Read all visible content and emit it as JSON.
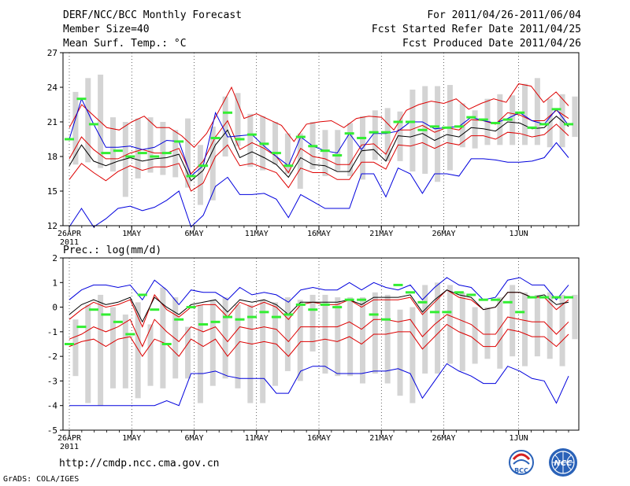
{
  "header": {
    "title": "DERF/NCC/BCC Monthly Forecast",
    "member_size": "Member Size=40",
    "variable": "Mean Surf. Temp.: °C",
    "period": "For 2011/04/26-2011/06/04",
    "started": "Fcst Started Refer Date 2011/04/25",
    "produced": "Fcst Produced Date 2011/04/26"
  },
  "footer": {
    "url": "http://cmdp.ncc.cma.gov.cn",
    "grads": "GrADS: COLA/IGES",
    "logo_left": "BCC",
    "logo_right": "NCC"
  },
  "colors": {
    "box": "#d4d4d4",
    "envelope": "#0000dd",
    "percentile": "#dd0000",
    "ensemble_mean": "#000000",
    "member_mark": "#33ee33",
    "grid": "#000000"
  },
  "chart_data": [
    {
      "type": "line",
      "title": "Mean Surf. Temp.: °C",
      "ylim": [
        12,
        27
      ],
      "yticks": [
        12,
        15,
        18,
        21,
        24,
        27
      ],
      "ytick_labels": [
        "12",
        "15",
        "18",
        "21",
        "24",
        "27"
      ],
      "x_days": 40,
      "xtick_days": [
        0,
        5,
        10,
        15,
        20,
        25,
        30,
        36
      ],
      "xtick_labels": [
        "26APR",
        "1MAY",
        "6MAY",
        "11MAY",
        "16MAY",
        "21MAY",
        "26MAY",
        "1JUN"
      ],
      "xtick_sublabel": "2011",
      "series": [
        {
          "name": "max",
          "values": [
            11.9,
            13.5,
            11.9,
            12.6,
            13.5,
            13.7,
            13.3,
            13.6,
            14.2,
            15.0,
            11.9,
            12.9,
            15.4,
            16.2,
            14.7,
            14.7,
            14.8,
            14.3,
            12.7,
            14.7,
            14.1,
            13.5,
            13.5,
            13.5,
            16.5,
            16.5,
            14.5,
            17.0,
            16.5,
            14.8,
            16.5,
            16.5,
            16.3,
            17.8,
            17.8,
            17.7,
            17.5,
            17.5,
            17.6,
            17.9,
            19.2,
            17.9
          ]
        },
        {
          "name": "p90",
          "values": [
            20.5,
            22.5,
            21.5,
            20.5,
            20.3,
            21.0,
            21.5,
            20.5,
            20.5,
            19.8,
            18.8,
            20.0,
            22.0,
            24.0,
            21.3,
            21.7,
            21.2,
            20.7,
            19.3,
            20.8,
            21.0,
            21.1,
            20.5,
            21.3,
            21.5,
            21.4,
            20.3,
            22.0,
            22.5,
            22.8,
            22.6,
            23.0,
            22.1,
            22.6,
            23.0,
            22.7,
            24.3,
            24.1,
            22.7,
            23.6,
            22.4
          ]
        },
        {
          "name": "p75",
          "values": [
            17.8,
            19.7,
            18.6,
            17.8,
            17.8,
            18.3,
            18.6,
            18.3,
            18.3,
            18.7,
            16.5,
            17.6,
            19.7,
            21.1,
            18.6,
            19.2,
            18.7,
            18.0,
            16.6,
            18.7,
            18.0,
            17.8,
            17.3,
            17.3,
            19.0,
            19.1,
            18.2,
            20.3,
            20.3,
            20.7,
            20.1,
            20.5,
            20.3,
            21.2,
            21.1,
            20.8,
            21.8,
            21.6,
            21.1,
            21.1,
            22.0,
            21.3
          ]
        },
        {
          "name": "mean",
          "values": [
            17.2,
            19.0,
            17.6,
            17.2,
            17.6,
            17.9,
            17.6,
            17.8,
            17.9,
            18.2,
            15.9,
            16.8,
            19.0,
            20.3,
            17.9,
            18.4,
            17.9,
            17.3,
            16.2,
            17.9,
            17.3,
            17.2,
            16.7,
            16.7,
            18.5,
            18.6,
            17.6,
            19.8,
            19.7,
            20.0,
            19.4,
            19.9,
            19.7,
            20.5,
            20.4,
            20.2,
            21.0,
            20.9,
            20.4,
            20.5,
            21.5,
            20.6
          ]
        },
        {
          "name": "p25",
          "values": [
            16.0,
            17.4,
            16.6,
            15.9,
            16.7,
            17.2,
            16.8,
            17.1,
            17.1,
            17.4,
            15.0,
            15.7,
            18.0,
            19.0,
            17.2,
            17.4,
            17.0,
            16.6,
            15.3,
            17.0,
            16.6,
            16.6,
            16.0,
            16.0,
            17.5,
            17.5,
            16.9,
            19.0,
            18.9,
            19.2,
            18.7,
            19.2,
            19.0,
            19.8,
            19.8,
            19.5,
            20.1,
            20.0,
            19.7,
            19.9,
            20.8,
            19.8
          ]
        },
        {
          "name": "min_top",
          "values": [
            19.5,
            23.0,
            20.8,
            18.8,
            18.8,
            18.9,
            18.6,
            18.8,
            19.4,
            19.3,
            16.3,
            17.2,
            21.8,
            19.7,
            19.8,
            19.9,
            18.9,
            18.0,
            17.2,
            19.7,
            18.9,
            18.5,
            18.3,
            20.0,
            18.6,
            20.0,
            20.0,
            20.2,
            21.0,
            21.0,
            20.4,
            20.5,
            20.6,
            21.4,
            21.1,
            20.9,
            21.3,
            21.8,
            21.1,
            20.8,
            22.1,
            20.7
          ]
        }
      ],
      "box_high": [
        23.6,
        24.8,
        25.1,
        21.4,
        21.0,
        21.3,
        21.4,
        21.0,
        20.3,
        21.3,
        19.0,
        20.6,
        23.2,
        23.5,
        21.7,
        21.5,
        21.0,
        20.0,
        20.0,
        21.0,
        20.3,
        20.3,
        20.9,
        21.5,
        22.0,
        22.2,
        21.9,
        23.8,
        24.1,
        24.1,
        24.2,
        22.6,
        22.0,
        23.0,
        23.4,
        23.3,
        24.3,
        24.8,
        23.0,
        23.4,
        23.2
      ],
      "box_low": [
        17.3,
        17.5,
        17.0,
        16.7,
        14.5,
        16.1,
        16.6,
        16.4,
        16.2,
        15.3,
        13.8,
        14.2,
        18.0,
        18.9,
        17.1,
        16.8,
        17.3,
        16.5,
        15.2,
        16.9,
        16.3,
        16.8,
        16.3,
        16.0,
        17.7,
        17.6,
        17.6,
        16.7,
        16.5,
        15.8,
        16.8,
        18.8,
        18.7,
        19.0,
        19.0,
        19.0,
        19.0,
        19.0,
        18.8,
        18.8,
        19.7
      ],
      "member_marks": [
        19.5,
        23.0,
        20.8,
        18.3,
        18.5,
        18.0,
        18.3,
        18.0,
        18.3,
        19.3,
        16.3,
        17.2,
        19.6,
        21.8,
        19.5,
        19.9,
        19.1,
        18.3,
        17.2,
        19.7,
        18.9,
        18.5,
        18.1,
        20.0,
        19.6,
        20.1,
        20.1,
        21.0,
        21.0,
        20.3,
        20.6,
        20.5,
        20.6,
        21.4,
        21.2,
        20.9,
        21.2,
        21.8,
        20.5,
        20.8,
        22.1,
        20.8
      ]
    },
    {
      "type": "line",
      "title": "Prec.: log(mm/d)",
      "ylim": [
        -5,
        2
      ],
      "yticks": [
        -5,
        -4,
        -3,
        -2,
        -1,
        0,
        1,
        2
      ],
      "ytick_labels": [
        "-5",
        "-4",
        "-3",
        "-2",
        "-1",
        "0",
        "1",
        "2"
      ],
      "x_days": 40,
      "xtick_days": [
        0,
        5,
        10,
        15,
        20,
        25,
        30,
        36
      ],
      "xtick_labels": [
        "26APR",
        "1MAY",
        "6MAY",
        "11MAY",
        "16MAY",
        "21MAY",
        "26MAY",
        "1JUN"
      ],
      "xtick_sublabel": "2011",
      "series": [
        {
          "name": "max",
          "values": [
            0.3,
            0.7,
            0.9,
            0.9,
            0.8,
            0.9,
            0.3,
            1.1,
            0.7,
            0.1,
            0.7,
            0.6,
            0.6,
            0.3,
            0.8,
            0.5,
            0.6,
            0.5,
            0.2,
            0.7,
            0.8,
            0.7,
            0.7,
            1.0,
            0.7,
            1.0,
            0.8,
            0.7,
            0.9,
            0.3,
            0.8,
            1.2,
            0.9,
            0.8,
            0.3,
            0.4,
            1.1,
            1.2,
            0.9,
            0.9,
            0.3,
            0.9
          ]
        },
        {
          "name": "p90",
          "values": [
            -0.5,
            -0.1,
            0.2,
            0.0,
            0.1,
            0.3,
            -0.8,
            0.5,
            -0.1,
            -0.4,
            0.0,
            0.1,
            0.1,
            -0.4,
            0.2,
            0.0,
            0.2,
            0.0,
            -0.5,
            0.1,
            0.2,
            0.1,
            0.1,
            0.3,
            0.0,
            0.3,
            0.3,
            0.3,
            0.4,
            -0.3,
            0.2,
            0.7,
            0.4,
            0.3,
            -0.1,
            0.0,
            0.6,
            0.6,
            0.4,
            0.4,
            -0.1,
            0.3
          ]
        },
        {
          "name": "mean",
          "values": [
            -0.3,
            0.1,
            0.3,
            0.1,
            0.2,
            0.4,
            -0.6,
            0.4,
            0.0,
            -0.3,
            0.1,
            0.2,
            0.3,
            -0.2,
            0.3,
            0.2,
            0.3,
            0.1,
            -0.3,
            0.2,
            0.2,
            0.2,
            0.2,
            0.3,
            0.1,
            0.4,
            0.4,
            0.4,
            0.5,
            -0.2,
            0.3,
            0.7,
            0.5,
            0.4,
            -0.1,
            0.0,
            0.6,
            0.6,
            0.4,
            0.5,
            0.1,
            0.2
          ]
        },
        {
          "name": "p25",
          "values": [
            -1.3,
            -1.1,
            -0.8,
            -1.0,
            -0.8,
            -0.5,
            -1.6,
            -0.5,
            -1.0,
            -1.4,
            -0.8,
            -1.0,
            -0.8,
            -1.4,
            -0.8,
            -0.9,
            -0.8,
            -0.9,
            -1.4,
            -0.8,
            -0.8,
            -0.8,
            -0.8,
            -0.6,
            -0.9,
            -0.5,
            -0.5,
            -0.6,
            -0.5,
            -1.2,
            -0.7,
            -0.3,
            -0.5,
            -0.7,
            -1.1,
            -1.1,
            -0.4,
            -0.5,
            -0.6,
            -0.6,
            -1.1,
            -0.6
          ]
        },
        {
          "name": "p10",
          "values": [
            -1.6,
            -1.4,
            -1.3,
            -1.6,
            -1.3,
            -1.2,
            -2.0,
            -1.3,
            -1.5,
            -2.0,
            -1.3,
            -1.6,
            -1.3,
            -2.0,
            -1.4,
            -1.5,
            -1.4,
            -1.5,
            -2.0,
            -1.4,
            -1.4,
            -1.3,
            -1.4,
            -1.2,
            -1.5,
            -1.1,
            -1.1,
            -1.0,
            -1.0,
            -1.7,
            -1.2,
            -0.7,
            -1.0,
            -1.2,
            -1.6,
            -1.6,
            -0.9,
            -1.0,
            -1.2,
            -1.2,
            -1.6,
            -1.1
          ]
        },
        {
          "name": "min",
          "values": [
            -4.0,
            -4.0,
            -4.0,
            -4.0,
            -4.0,
            -4.0,
            -4.0,
            -4.0,
            -3.8,
            -4.0,
            -2.7,
            -2.7,
            -2.6,
            -2.8,
            -2.9,
            -2.9,
            -2.9,
            -3.5,
            -3.5,
            -2.6,
            -2.4,
            -2.4,
            -2.7,
            -2.7,
            -2.7,
            -2.6,
            -2.6,
            -2.5,
            -2.7,
            -3.7,
            -3.0,
            -2.3,
            -2.6,
            -2.8,
            -3.1,
            -3.1,
            -2.4,
            -2.6,
            -2.9,
            -3.0,
            -3.9,
            -2.8
          ]
        }
      ],
      "box_high": [
        -0.5,
        0.1,
        0.5,
        0.0,
        -0.3,
        0.2,
        -0.7,
        0.8,
        0.4,
        -0.8,
        0.1,
        0.3,
        0.4,
        0.1,
        0.1,
        0.3,
        0.2,
        0.4,
        0.3,
        0.5,
        0.5,
        0.4,
        0.4,
        0.4,
        0.6,
        0.5,
        -0.1,
        0.0,
        0.9,
        1.0,
        0.9,
        0.6,
        0.0,
        0.0,
        0.4,
        0.9,
        0.6,
        0.5,
        0.6,
        0.5,
        0.5
      ],
      "box_low": [
        -2.8,
        -3.9,
        -4.0,
        -3.3,
        -3.3,
        -3.7,
        -3.2,
        -3.3,
        -2.9,
        -2.9,
        -3.9,
        -3.2,
        -2.9,
        -3.3,
        -3.9,
        -3.9,
        -3.2,
        -2.6,
        -3.0,
        -1.8,
        -2.7,
        -2.8,
        -2.8,
        -3.1,
        -2.7,
        -3.1,
        -3.6,
        -3.9,
        -2.7,
        -2.7,
        -2.3,
        -2.6,
        -2.3,
        -2.1,
        -2.5,
        -2.0,
        -2.4,
        -2.0,
        -2.1,
        -2.4,
        -1.3
      ],
      "member_marks": [
        -1.5,
        -0.8,
        -0.1,
        -0.3,
        -0.6,
        -1.1,
        0.5,
        -0.1,
        -1.5,
        -0.5,
        0.0,
        -0.7,
        -0.6,
        -0.4,
        -0.5,
        -0.4,
        -0.2,
        -0.4,
        -0.3,
        0.1,
        -0.1,
        0.1,
        0.0,
        0.3,
        0.3,
        -0.3,
        -0.5,
        0.9,
        0.6,
        0.2,
        -0.2,
        -0.2,
        0.6,
        0.5,
        0.3,
        0.3,
        0.2,
        -0.2,
        0.4,
        0.4,
        0.4,
        0.4
      ]
    }
  ]
}
